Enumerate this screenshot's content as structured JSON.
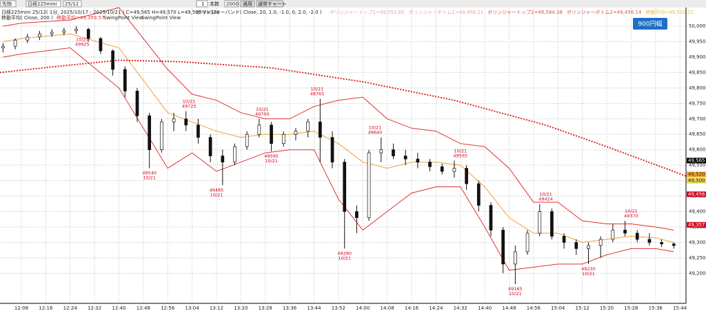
{
  "toolbar": {
    "market": "先物",
    "symbol": "日経225mini",
    "contract": "25/12",
    "interval": "1",
    "interval_unit": "本数",
    "count": "2000",
    "apply": "適用",
    "mode": "通常チャート"
  },
  "button": "900円幅",
  "chart_data": {
    "type": "candlestick",
    "title": "日経225mini 25/12( 1分, 2025/10/17 - 2025/10/21 ) C=49,565 H=49,570 L=49,560 V=338",
    "indicator": "ボリンジャーバンド( Close, 20, 1.0, -1.0, 0, 2.0, -2.0 )",
    "indicator_values": [
      {
        "text": "ボリンジャートップ1=49,552.60",
        "color": "#f4a0a0"
      },
      {
        "text": "ボリンジャーボトム1=49,456.21",
        "color": "#f4a0a0"
      },
      {
        "text": "ボリンジャートップ2=49,584.38",
        "color": "#e05050"
      },
      {
        "text": "ボリンジャーボトム2=49,456.14",
        "color": "#e05050"
      },
      {
        "text": "移動平均=49,533.21",
        "color": "#e8c040"
      }
    ],
    "subtitle": "移動平均( Close, 200 )",
    "subtitle_value": {
      "text": "移動平均=49,359.57",
      "color": "#e03030"
    },
    "subtitle_extra": [
      "SwingPoint View",
      "SwingPoint View"
    ],
    "x": [
      "12:02",
      "12:06",
      "12:10",
      "12:14",
      "12:18",
      "12:22",
      "12:26",
      "12:30",
      "12:34",
      "12:38",
      "12:42",
      "12:46",
      "12:50",
      "12:54",
      "12:58",
      "13:02",
      "13:06",
      "13:10",
      "13:14",
      "13:18",
      "13:22",
      "13:26",
      "13:30",
      "13:34",
      "13:38",
      "13:42",
      "13:46",
      "13:50",
      "13:54",
      "13:58",
      "14:02",
      "14:06",
      "14:10",
      "14:14",
      "14:18",
      "14:22",
      "14:26",
      "14:30",
      "14:34",
      "14:38",
      "14:42",
      "14:46",
      "14:50",
      "14:54",
      "14:58",
      "15:02",
      "15:06",
      "15:10",
      "15:14",
      "15:18",
      "15:22",
      "15:26",
      "15:30",
      "15:34",
      "15:38",
      "15:42"
    ],
    "open": [
      49930,
      49935,
      49955,
      49965,
      49975,
      49980,
      49985,
      49990,
      49960,
      49920,
      49860,
      49790,
      49710,
      49600,
      49690,
      49700,
      49680,
      49640,
      49580,
      49560,
      49610,
      49650,
      49680,
      49620,
      49650,
      49660,
      49690,
      49640,
      49560,
      49400,
      49380,
      49590,
      49600,
      49580,
      49570,
      49560,
      49545,
      49530,
      49540,
      49490,
      49420,
      49340,
      49230,
      49270,
      49330,
      49400,
      49320,
      49300,
      49280,
      49290,
      49310,
      49340,
      49330,
      49310,
      49300,
      49295
    ],
    "high": [
      49945,
      49960,
      49975,
      49985,
      49990,
      49995,
      50000,
      49995,
      49965,
      49925,
      49870,
      49800,
      49720,
      49700,
      49720,
      49725,
      49700,
      49650,
      49600,
      49620,
      49660,
      49700,
      49690,
      49660,
      49670,
      49700,
      49765,
      49660,
      49570,
      49420,
      49600,
      49640,
      49620,
      49600,
      49590,
      49570,
      49555,
      49565,
      49550,
      49500,
      49430,
      49350,
      49290,
      49340,
      49424,
      49410,
      49330,
      49310,
      49300,
      49320,
      49360,
      49370,
      49340,
      49330,
      49310,
      49300
    ],
    "low": [
      49915,
      49925,
      49945,
      49955,
      49965,
      49970,
      49975,
      49950,
      49910,
      49840,
      49770,
      49690,
      49540,
      49590,
      49660,
      49660,
      49620,
      49560,
      49485,
      49550,
      49600,
      49640,
      49595,
      49610,
      49630,
      49640,
      49560,
      49540,
      49280,
      49330,
      49370,
      49560,
      49570,
      49550,
      49540,
      49530,
      49520,
      49510,
      49470,
      49400,
      49320,
      49200,
      49165,
      49260,
      49320,
      49310,
      49280,
      49260,
      49230,
      49250,
      49300,
      49320,
      49300,
      49290,
      49285,
      49280
    ],
    "close": [
      49935,
      49955,
      49965,
      49975,
      49980,
      49985,
      49990,
      49960,
      49920,
      49860,
      49790,
      49710,
      49600,
      49690,
      49700,
      49680,
      49640,
      49580,
      49560,
      49610,
      49650,
      49680,
      49620,
      49650,
      49660,
      49690,
      49640,
      49560,
      49400,
      49380,
      49590,
      49600,
      49580,
      49570,
      49560,
      49545,
      49530,
      49540,
      49490,
      49420,
      49340,
      49230,
      49270,
      49330,
      49400,
      49320,
      49300,
      49280,
      49290,
      49310,
      49340,
      49330,
      49310,
      49300,
      49295,
      49290
    ],
    "bands": {
      "x": [
        "12:02",
        "12:08",
        "12:24",
        "12:40",
        "12:56",
        "13:04",
        "13:12",
        "13:20",
        "13:28",
        "13:36",
        "13:44",
        "13:52",
        "14:00",
        "14:08",
        "14:16",
        "14:24",
        "14:32",
        "14:40",
        "14:48",
        "14:56",
        "15:04",
        "15:12",
        "15:20",
        "15:28",
        "15:36",
        "15:42"
      ],
      "upper": [
        50000,
        50010,
        50020,
        50060,
        49860,
        49780,
        49760,
        49720,
        49700,
        49700,
        49740,
        49760,
        49770,
        49700,
        49670,
        49660,
        49620,
        49610,
        49540,
        49430,
        49430,
        49370,
        49360,
        49360,
        49350,
        49340
      ],
      "middle": [
        49950,
        49960,
        49975,
        49930,
        49720,
        49690,
        49660,
        49640,
        49650,
        49650,
        49660,
        49620,
        49560,
        49540,
        49560,
        49560,
        49550,
        49480,
        49380,
        49330,
        49330,
        49300,
        49310,
        49320,
        49315,
        49300
      ],
      "lower": [
        49900,
        49910,
        49930,
        49800,
        49540,
        49590,
        49530,
        49560,
        49590,
        49600,
        49600,
        49440,
        49340,
        49400,
        49460,
        49480,
        49480,
        49350,
        49210,
        49220,
        49230,
        49230,
        49260,
        49280,
        49280,
        49270
      ],
      "outer_color": "#e03030",
      "middle_color": "#f0a030"
    },
    "ma200": {
      "x": [
        "12:01",
        "12:20",
        "12:40",
        "13:00",
        "13:30",
        "14:00",
        "14:30",
        "15:00",
        "15:20",
        "15:46"
      ],
      "values": [
        49850,
        49870,
        49890,
        49885,
        49865,
        49820,
        49760,
        49680,
        49610,
        49515
      ],
      "color": "#e02020"
    },
    "up_color": "#ffffff",
    "down_color": "#111111",
    "xlim": [
      "12:01",
      "15:46"
    ],
    "xticks": [
      "12:08",
      "12:16",
      "12:24",
      "12:32",
      "12:40",
      "12:48",
      "12:56",
      "13:04",
      "13:12",
      "13:20",
      "13:28",
      "13:36",
      "13:44",
      "13:52",
      "14:00",
      "14:08",
      "14:16",
      "14:24",
      "14:32",
      "14:40",
      "14:48",
      "14:56",
      "15:04",
      "15:12",
      "15:20",
      "15:28",
      "15:36",
      "15:44"
    ],
    "ylim": [
      49105,
      50058
    ],
    "yticks": [
      {
        "value": 50000,
        "label": "50,000"
      },
      {
        "value": 49950,
        "label": "49,950"
      },
      {
        "value": 49900,
        "label": "49,900"
      },
      {
        "value": 49850,
        "label": "49,850"
      },
      {
        "value": 49800,
        "label": "49,800"
      },
      {
        "value": 49750,
        "label": "49,750"
      },
      {
        "value": 49700,
        "label": "49,700"
      },
      {
        "value": 49650,
        "label": "49,650"
      },
      {
        "value": 49600,
        "label": "49,600"
      },
      {
        "value": 49550,
        "label": "49,550"
      },
      {
        "value": 49500,
        "label": "49,500"
      },
      {
        "value": 49450,
        "label": "49,450"
      },
      {
        "value": 49400,
        "label": "49,400"
      },
      {
        "value": 49350,
        "label": "49,350"
      },
      {
        "value": 49300,
        "label": "49,300"
      },
      {
        "value": 49250,
        "label": "49,250"
      },
      {
        "value": 49200,
        "label": "49,200"
      }
    ],
    "grid": true,
    "price_badges": [
      {
        "value": 49565,
        "label": "49,565",
        "color": "#000000"
      },
      {
        "value": 49520,
        "label": "49,520",
        "color": "#f5a623"
      },
      {
        "value": 49500,
        "label": "49,500",
        "color": "#e8d44d"
      },
      {
        "value": 49456,
        "label": "49,456",
        "color": "#d0021b"
      },
      {
        "value": 49357,
        "label": "49,357",
        "color": "#d0021b"
      }
    ],
    "annotations": [
      {
        "time": "12:28",
        "price": 49925,
        "date": "10/21",
        "position": "above"
      },
      {
        "time": "12:50",
        "price": 49540,
        "date": "10/21",
        "position": "below"
      },
      {
        "time": "13:03",
        "price": 49725,
        "date": "10/21",
        "position": "above"
      },
      {
        "time": "13:12",
        "price": 49485,
        "date": "10/21",
        "position": "below"
      },
      {
        "time": "13:27",
        "price": 49700,
        "date": "10/21",
        "position": "above"
      },
      {
        "time": "13:30",
        "price": 49595,
        "date": "10/21",
        "position": "below"
      },
      {
        "time": "13:45",
        "price": 49765,
        "date": "10/21",
        "position": "above"
      },
      {
        "time": "13:54",
        "price": 49280,
        "date": "10/21",
        "position": "below"
      },
      {
        "time": "14:04",
        "price": 49640,
        "date": "10/21",
        "position": "above"
      },
      {
        "time": "14:32",
        "price": 49565,
        "date": "10/21",
        "position": "above"
      },
      {
        "time": "14:50",
        "price": 49165,
        "date": "10/21",
        "position": "below"
      },
      {
        "time": "15:00",
        "price": 49424,
        "date": "10/21",
        "position": "above"
      },
      {
        "time": "15:14",
        "price": 49230,
        "date": "10/21",
        "position": "below"
      },
      {
        "time": "15:28",
        "price": 49370,
        "date": "10/21",
        "position": "above"
      }
    ]
  }
}
